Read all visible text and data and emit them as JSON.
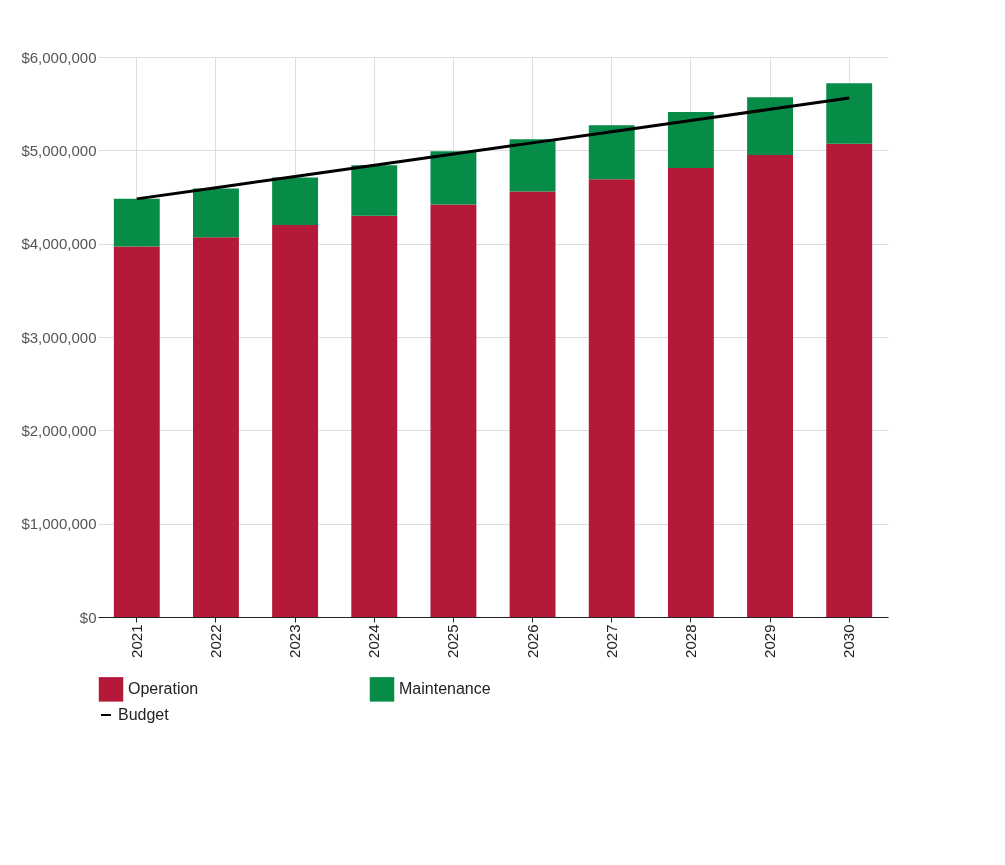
{
  "chart_data": {
    "type": "bar",
    "stacked": true,
    "categories": [
      "2021",
      "2022",
      "2023",
      "2024",
      "2025",
      "2026",
      "2027",
      "2028",
      "2029",
      "2030"
    ],
    "series": [
      {
        "name": "Operation",
        "color": "#b5193a",
        "values": [
          3970000,
          4070000,
          4200000,
          4300000,
          4420000,
          4560000,
          4690000,
          4810000,
          4950000,
          5070000
        ]
      },
      {
        "name": "Maintenance",
        "color": "#078c48",
        "values": [
          510000,
          520000,
          510000,
          540000,
          570000,
          560000,
          580000,
          600000,
          620000,
          650000
        ]
      },
      {
        "name": "Budget",
        "type": "line",
        "color": "#000000",
        "values": [
          4480000,
          4600000,
          4720000,
          4840000,
          4960000,
          5080000,
          5200000,
          5320000,
          5440000,
          5560000
        ]
      }
    ],
    "ylim": [
      0,
      6000000
    ],
    "yticks": [
      {
        "value": 0,
        "label": "$0"
      },
      {
        "value": 1000000,
        "label": "$1,000,000"
      },
      {
        "value": 2000000,
        "label": "$2,000,000"
      },
      {
        "value": 3000000,
        "label": "$3,000,000"
      },
      {
        "value": 4000000,
        "label": "$4,000,000"
      },
      {
        "value": 5000000,
        "label": "$5,000,000"
      },
      {
        "value": 6000000,
        "label": "$6,000,000"
      }
    ],
    "grid": true,
    "legend": "bottom",
    "marker": "none",
    "line_style": "solid"
  }
}
